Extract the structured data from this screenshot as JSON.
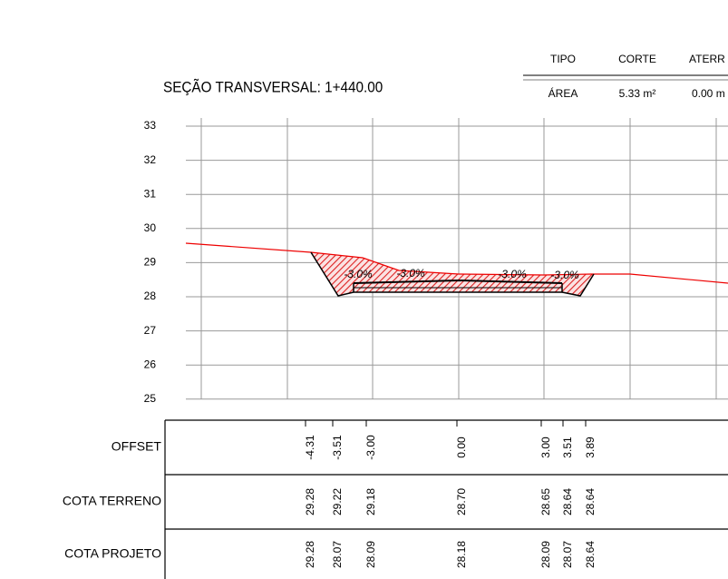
{
  "title": "SEÇÃO TRANSVERSAL: 1+440.00",
  "summary": {
    "headers": [
      "TIPO",
      "CORTE",
      "ATERR"
    ],
    "row": [
      "ÁREA",
      "5.33 m²",
      "0.00 m"
    ]
  },
  "y_axis": {
    "labels": [
      "33",
      "32",
      "31",
      "30",
      "29",
      "28",
      "27",
      "26",
      "25"
    ]
  },
  "slopes": [
    "-3.0%",
    "-3.0%",
    "-3.0%",
    "-3.0%"
  ],
  "table": {
    "rows": [
      {
        "label": "OFFSET",
        "values": [
          "-4.31",
          "-3.51",
          "-3.00",
          "0.00",
          "3.00",
          "3.51",
          "3.89"
        ]
      },
      {
        "label": "COTA TERRENO",
        "values": [
          "29.28",
          "29.22",
          "29.18",
          "28.70",
          "28.65",
          "28.64",
          "28.64"
        ]
      },
      {
        "label": "COTA PROJETO",
        "values": [
          "29.28",
          "28.07",
          "28.09",
          "28.18",
          "28.09",
          "28.07",
          "28.64"
        ]
      }
    ]
  }
}
